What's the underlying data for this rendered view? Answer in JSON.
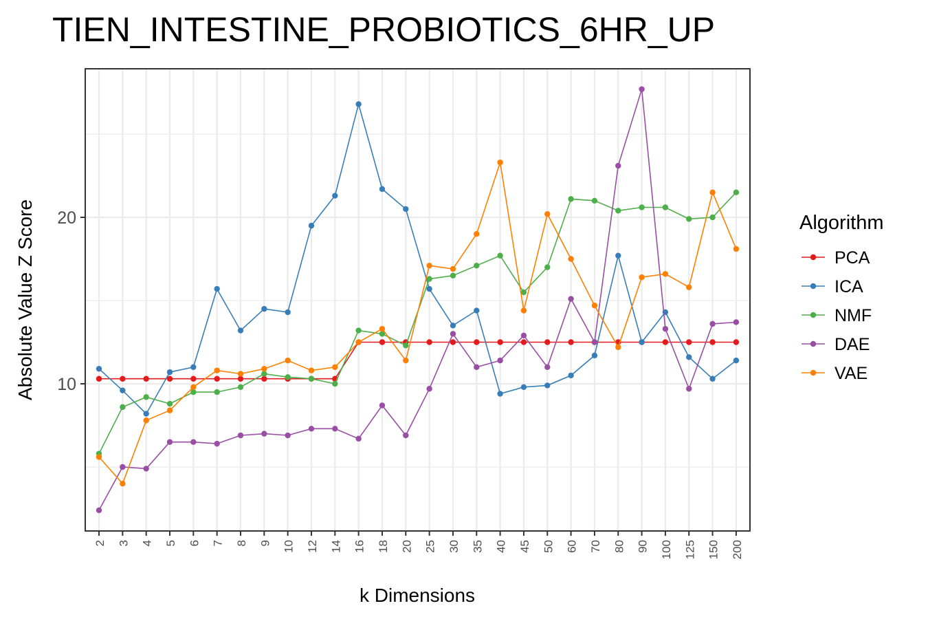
{
  "chart_data": {
    "type": "line",
    "title": "TIEN_INTESTINE_PROBIOTICS_6HR_UP",
    "xlabel": "k Dimensions",
    "ylabel": "Absolute Value Z Score",
    "categories": [
      "2",
      "3",
      "4",
      "5",
      "6",
      "7",
      "8",
      "9",
      "10",
      "12",
      "14",
      "16",
      "18",
      "20",
      "25",
      "30",
      "35",
      "40",
      "45",
      "50",
      "60",
      "70",
      "80",
      "90",
      "100",
      "125",
      "150",
      "200"
    ],
    "y_ticks": [
      10,
      20
    ],
    "ylim": [
      1.3,
      28.3
    ],
    "grid": true,
    "legend_position": "right",
    "legend_title": "Algorithm",
    "series": [
      {
        "name": "PCA",
        "color": "#E41A1C",
        "values": [
          10.3,
          10.3,
          10.3,
          10.3,
          10.3,
          10.3,
          10.3,
          10.3,
          10.3,
          10.3,
          10.3,
          12.5,
          12.5,
          12.5,
          12.5,
          12.5,
          12.5,
          12.5,
          12.5,
          12.5,
          12.5,
          12.5,
          12.5,
          12.5,
          12.5,
          12.5,
          12.5,
          12.5
        ]
      },
      {
        "name": "ICA",
        "color": "#377EB8",
        "values": [
          10.9,
          9.6,
          8.2,
          10.7,
          11.0,
          15.7,
          13.2,
          14.5,
          14.3,
          19.5,
          21.3,
          26.8,
          21.7,
          20.5,
          15.7,
          13.5,
          14.4,
          9.4,
          9.8,
          9.9,
          10.5,
          11.7,
          17.7,
          12.5,
          14.3,
          11.6,
          10.3,
          11.4
        ]
      },
      {
        "name": "NMF",
        "color": "#4DAF4A",
        "values": [
          5.8,
          8.6,
          9.2,
          8.8,
          9.5,
          9.5,
          9.8,
          10.6,
          10.4,
          10.3,
          10.0,
          13.2,
          13.0,
          12.3,
          16.3,
          16.5,
          17.1,
          17.7,
          15.5,
          17.0,
          21.1,
          21.0,
          20.4,
          20.6,
          20.6,
          19.9,
          20.0,
          21.5
        ]
      },
      {
        "name": "DAE",
        "color": "#984EA3",
        "values": [
          2.4,
          5.0,
          4.9,
          6.5,
          6.5,
          6.4,
          6.9,
          7.0,
          6.9,
          7.3,
          7.3,
          6.7,
          8.7,
          6.9,
          9.7,
          13.0,
          11.0,
          11.4,
          12.9,
          11.0,
          15.1,
          12.5,
          23.1,
          27.7,
          13.3,
          9.7,
          13.6,
          13.7
        ]
      },
      {
        "name": "VAE",
        "color": "#FF7F00",
        "values": [
          5.6,
          4.0,
          7.8,
          8.4,
          9.8,
          10.8,
          10.6,
          10.9,
          11.4,
          10.8,
          11.0,
          12.5,
          13.3,
          11.4,
          17.1,
          16.9,
          19.0,
          23.3,
          14.4,
          20.2,
          17.5,
          14.7,
          12.2,
          16.4,
          16.6,
          15.8,
          21.5,
          18.1
        ]
      }
    ]
  }
}
